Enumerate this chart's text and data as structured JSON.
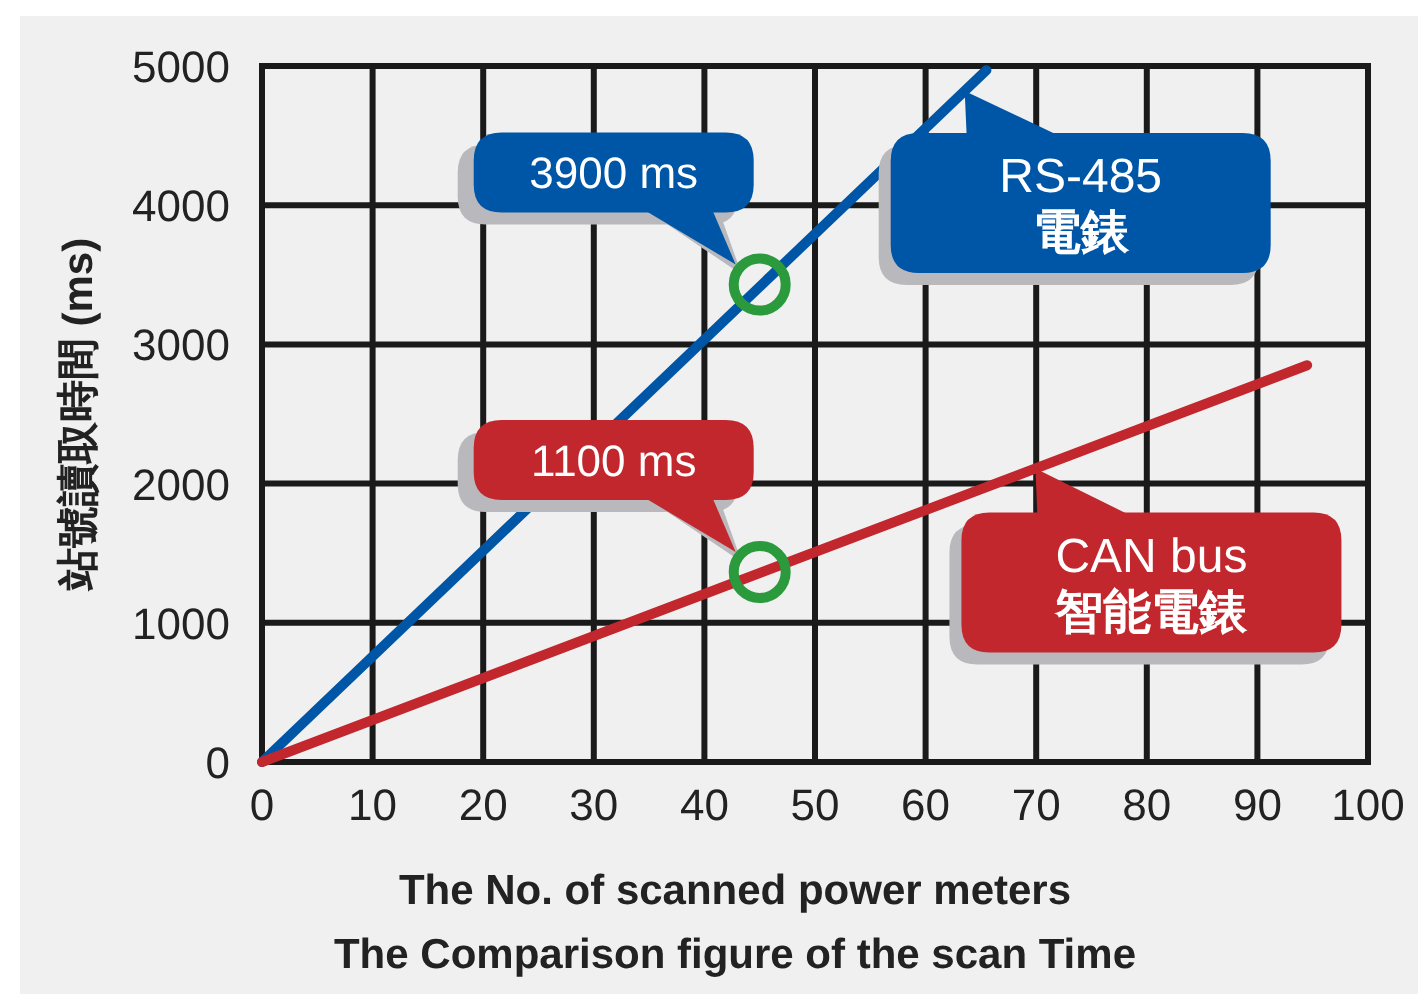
{
  "chart_data": {
    "type": "line",
    "title": "The Comparison figure of the scan Time",
    "xlabel": "The No. of scanned power meters",
    "ylabel": "站號讀取時間 (ms)",
    "series": [
      {
        "name": "RS-485\n電錶",
        "color": "#0056a6",
        "x": [
          0,
          65.5
        ],
        "values": [
          0,
          4970
        ]
      },
      {
        "name": "CAN bus\n智能電錶",
        "color": "#c1272d",
        "x": [
          0,
          94.5
        ],
        "values": [
          0,
          2850
        ]
      }
    ],
    "annotations": [
      {
        "text": "3900 ms",
        "x": 45,
        "y": 3430
      },
      {
        "text": "1100 ms",
        "x": 45,
        "y": 1365
      }
    ],
    "xlim": [
      0,
      100
    ],
    "ylim": [
      0,
      5000
    ],
    "xticks": [
      0,
      10,
      20,
      30,
      40,
      50,
      60,
      70,
      80,
      90,
      100
    ],
    "yticks": [
      0,
      1000,
      2000,
      3000,
      4000,
      5000
    ],
    "grid": true,
    "legend": "right",
    "marker": "none",
    "line_style": "solid"
  }
}
